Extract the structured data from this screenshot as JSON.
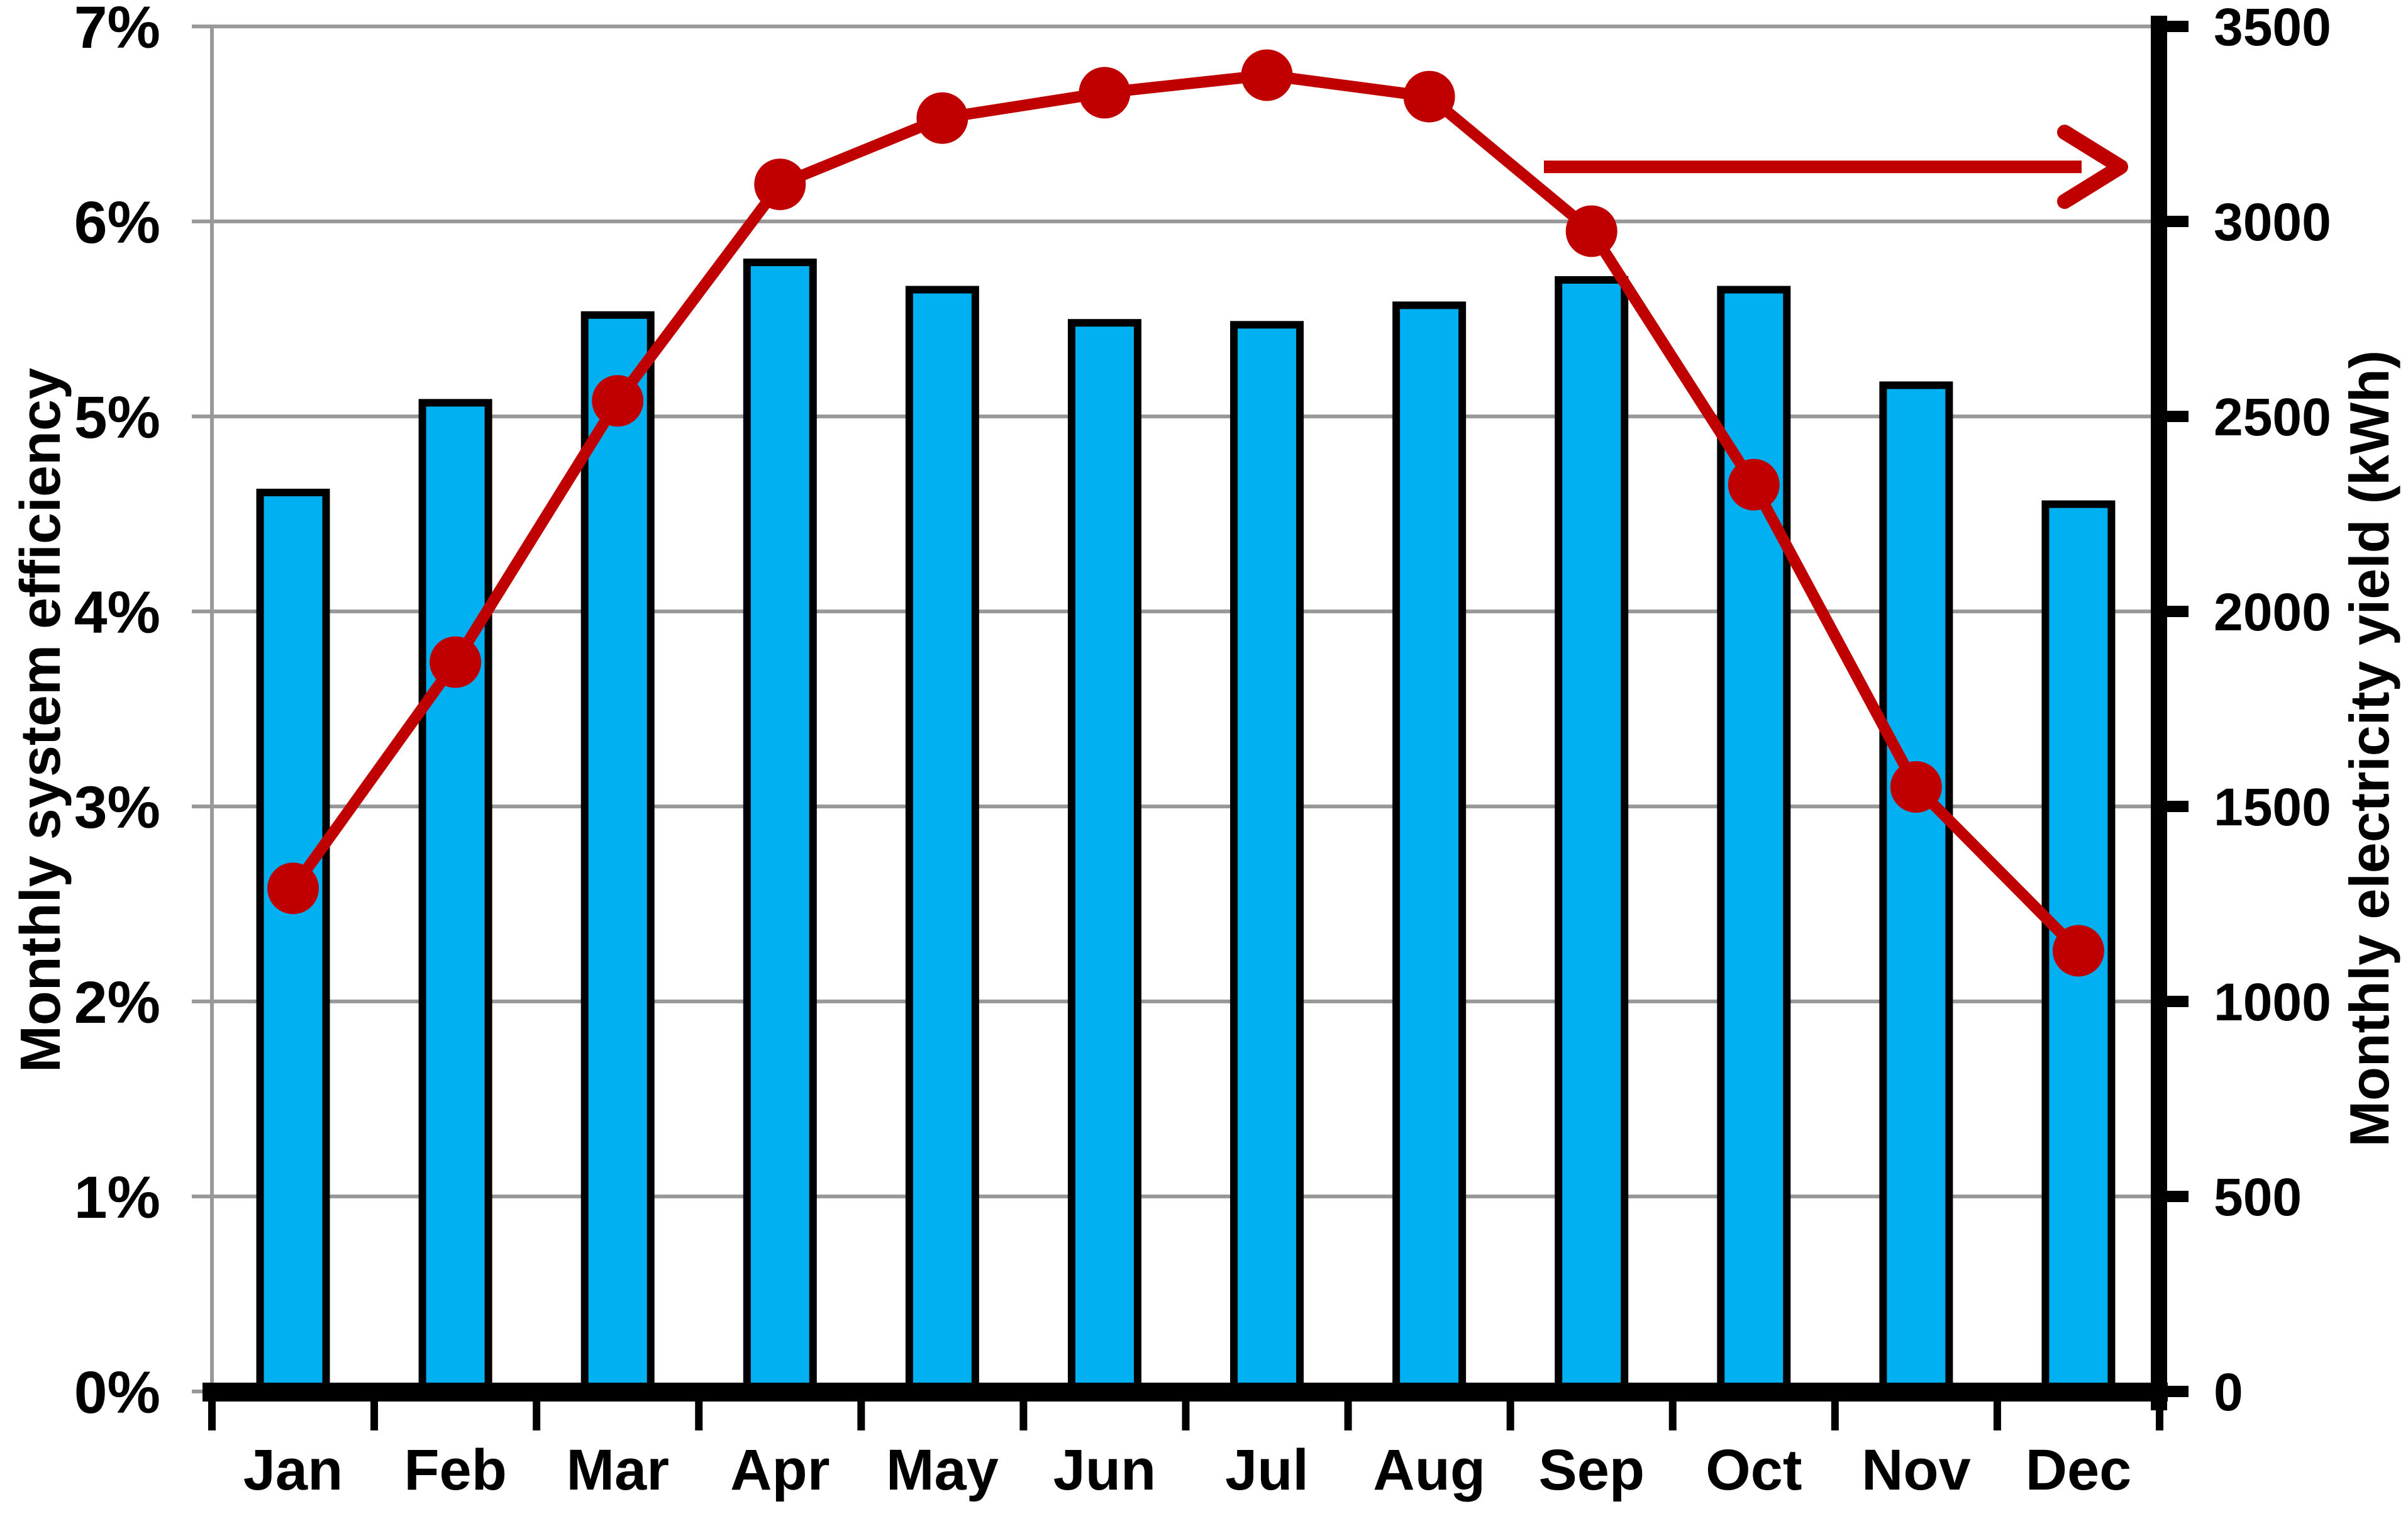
{
  "chart_data": {
    "type": "bar",
    "subtype": "combo-bar-line-dual-axis",
    "title": "",
    "categories": [
      "Jan",
      "Feb",
      "Mar",
      "Apr",
      "May",
      "Jun",
      "Jul",
      "Aug",
      "Sep",
      "Oct",
      "Nov",
      "Dec"
    ],
    "series": [
      {
        "name": "Monthly system efficiency",
        "type": "bar",
        "axis": "left",
        "unit": "%",
        "color": "#00B0F0",
        "border_color": "#000000",
        "values": [
          4.61,
          5.07,
          5.52,
          5.79,
          5.65,
          5.48,
          5.47,
          5.57,
          5.7,
          5.65,
          5.16,
          4.55
        ]
      },
      {
        "name": "Monthly electricity yield",
        "type": "line",
        "axis": "right",
        "unit": "kWh",
        "color": "#C00000",
        "marker": "circle",
        "values": [
          1290,
          1870,
          2540,
          3095,
          3265,
          3330,
          3375,
          3320,
          2975,
          2325,
          1550,
          1130
        ]
      }
    ],
    "left_axis": {
      "label": "Monthly system efficiency",
      "min": 0,
      "max": 7,
      "step": 1,
      "tick_labels": [
        "0%",
        "1%",
        "2%",
        "3%",
        "4%",
        "5%",
        "6%",
        "7%"
      ]
    },
    "right_axis": {
      "label": "Monthly electricity yield (kWh)",
      "min": 0,
      "max": 3500,
      "step": 500,
      "tick_labels": [
        "0",
        "500",
        "1000",
        "1500",
        "2000",
        "2500",
        "3000",
        "3500"
      ]
    },
    "xlabel": "",
    "grid": true,
    "legend_position": "none",
    "annotations": [
      {
        "type": "arrow",
        "direction": "right",
        "color": "#C00000",
        "at_right_axis_value": 3140,
        "meaning": "points to right axis: red line series is read on the right (kWh) axis"
      }
    ]
  },
  "colors": {
    "bar_fill": "#00B0F0",
    "bar_border": "#000000",
    "line": "#C00000",
    "gridline": "#999999",
    "axis_black": "#000000",
    "background": "#ffffff"
  }
}
